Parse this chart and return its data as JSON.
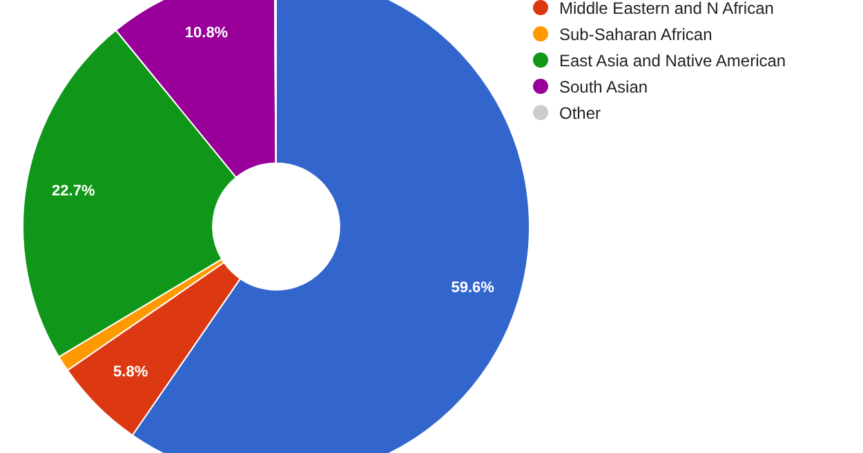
{
  "chart_data": {
    "type": "donut",
    "categories": [
      null,
      "Middle Eastern and N African",
      "Sub-Saharan African",
      "East Asia and Native American",
      "South Asian",
      "Other"
    ],
    "values": [
      59.6,
      5.8,
      1.0,
      22.7,
      10.8,
      0.1
    ],
    "colors": [
      "#3366cc",
      "#dc3912",
      "#ff9900",
      "#109618",
      "#990099",
      "#cccccc"
    ],
    "value_labels": [
      "59.6%",
      "5.8%",
      null,
      "22.7%",
      "10.8%",
      null
    ],
    "legend": "right"
  }
}
